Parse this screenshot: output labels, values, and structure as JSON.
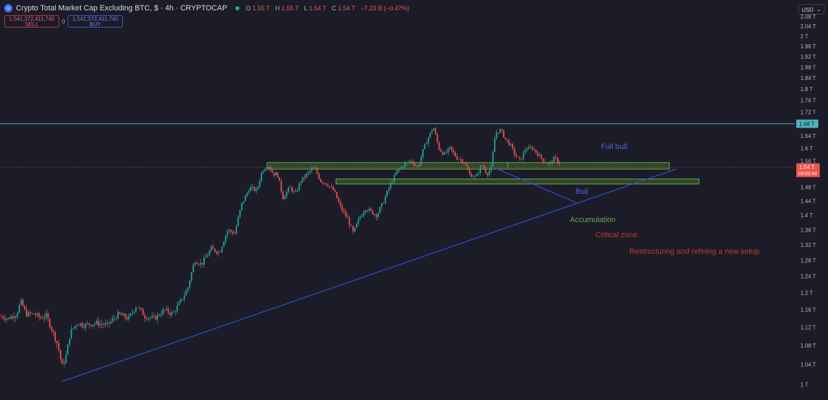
{
  "header": {
    "symbol_icon": "cryptocap-icon",
    "title": "Crypto Total Market Cap Excluding BTC, $ · 4h · CRYPTOCAP",
    "ohlc": {
      "o_label": "O",
      "o_value": "1.55 T",
      "h_label": "H",
      "h_value": "1.55 T",
      "l_label": "L",
      "l_value": "1.54 T",
      "c_label": "C",
      "c_value": "1.54 T",
      "change": "−7.23 B (−0.47%)"
    }
  },
  "trade": {
    "sell_price": "1,541,372,411,740",
    "sell_label": "SELL",
    "spread": "0",
    "buy_price": "1,541,372,411,740",
    "buy_label": "BUY"
  },
  "currency": "USD",
  "colors": {
    "background": "#1c1c28",
    "up": "#26a69a",
    "down": "#ef5350",
    "trendline": "#2e4fd6",
    "resistance": "#4fb3bf",
    "zone_fill": "#3f6a2a",
    "zone_border": "#6aa84f",
    "critical_text": "#c0392b"
  },
  "chart_data": {
    "type": "candlestick",
    "timeframe": "4h",
    "y_scale": "log",
    "ylim": [
      0.98,
      2.12
    ],
    "y_ticks": [
      {
        "v": 1.0,
        "label": "1 T"
      },
      {
        "v": 1.04,
        "label": "1.04 T"
      },
      {
        "v": 1.08,
        "label": "1.08 T"
      },
      {
        "v": 1.12,
        "label": "1.12 T"
      },
      {
        "v": 1.16,
        "label": "1.16 T"
      },
      {
        "v": 1.2,
        "label": "1.2 T"
      },
      {
        "v": 1.24,
        "label": "1.24 T"
      },
      {
        "v": 1.28,
        "label": "1.28 T"
      },
      {
        "v": 1.32,
        "label": "1.32 T"
      },
      {
        "v": 1.36,
        "label": "1.36 T"
      },
      {
        "v": 1.4,
        "label": "1.4 T"
      },
      {
        "v": 1.44,
        "label": "1.44 T"
      },
      {
        "v": 1.48,
        "label": "1.48 T"
      },
      {
        "v": 1.52,
        "label": "1.52 T"
      },
      {
        "v": 1.56,
        "label": "1.56 T"
      },
      {
        "v": 1.6,
        "label": "1.6 T"
      },
      {
        "v": 1.64,
        "label": "1.64 T"
      },
      {
        "v": 1.72,
        "label": "1.72 T"
      },
      {
        "v": 1.76,
        "label": "1.76 T"
      },
      {
        "v": 1.8,
        "label": "1.8 T"
      },
      {
        "v": 1.84,
        "label": "1.84 T"
      },
      {
        "v": 1.88,
        "label": "1.88 T"
      },
      {
        "v": 1.92,
        "label": "1.92 T"
      },
      {
        "v": 1.96,
        "label": "1.96 T"
      },
      {
        "v": 2.0,
        "label": "2 T"
      },
      {
        "v": 2.04,
        "label": "2.04 T"
      },
      {
        "v": 2.08,
        "label": "2.08 T"
      }
    ],
    "price_path": [
      [
        0,
        1.145
      ],
      [
        12,
        1.14
      ],
      [
        24,
        1.15
      ],
      [
        30,
        1.18
      ],
      [
        38,
        1.15
      ],
      [
        50,
        1.15
      ],
      [
        60,
        1.14
      ],
      [
        66,
        1.15
      ],
      [
        74,
        1.12
      ],
      [
        84,
        1.08
      ],
      [
        90,
        1.035
      ],
      [
        96,
        1.06
      ],
      [
        102,
        1.11
      ],
      [
        112,
        1.13
      ],
      [
        122,
        1.125
      ],
      [
        140,
        1.13
      ],
      [
        155,
        1.125
      ],
      [
        172,
        1.15
      ],
      [
        186,
        1.14
      ],
      [
        198,
        1.17
      ],
      [
        210,
        1.145
      ],
      [
        224,
        1.14
      ],
      [
        238,
        1.16
      ],
      [
        250,
        1.15
      ],
      [
        262,
        1.18
      ],
      [
        272,
        1.21
      ],
      [
        282,
        1.28
      ],
      [
        292,
        1.27
      ],
      [
        306,
        1.31
      ],
      [
        318,
        1.3
      ],
      [
        330,
        1.36
      ],
      [
        340,
        1.35
      ],
      [
        350,
        1.43
      ],
      [
        362,
        1.48
      ],
      [
        372,
        1.47
      ],
      [
        380,
        1.53
      ],
      [
        388,
        1.55
      ],
      [
        396,
        1.52
      ],
      [
        402,
        1.52
      ],
      [
        410,
        1.45
      ],
      [
        420,
        1.48
      ],
      [
        428,
        1.46
      ],
      [
        436,
        1.5
      ],
      [
        450,
        1.53
      ],
      [
        456,
        1.54
      ],
      [
        464,
        1.5
      ],
      [
        474,
        1.49
      ],
      [
        484,
        1.47
      ],
      [
        494,
        1.42
      ],
      [
        504,
        1.39
      ],
      [
        512,
        1.35
      ],
      [
        520,
        1.39
      ],
      [
        530,
        1.42
      ],
      [
        538,
        1.41
      ],
      [
        546,
        1.4
      ],
      [
        556,
        1.44
      ],
      [
        566,
        1.49
      ],
      [
        576,
        1.53
      ],
      [
        586,
        1.55
      ],
      [
        596,
        1.56
      ],
      [
        606,
        1.54
      ],
      [
        614,
        1.6
      ],
      [
        622,
        1.64
      ],
      [
        628,
        1.67
      ],
      [
        636,
        1.6
      ],
      [
        644,
        1.58
      ],
      [
        652,
        1.6
      ],
      [
        662,
        1.57
      ],
      [
        672,
        1.56
      ],
      [
        680,
        1.52
      ],
      [
        690,
        1.51
      ],
      [
        698,
        1.55
      ],
      [
        706,
        1.52
      ],
      [
        712,
        1.54
      ],
      [
        718,
        1.65
      ],
      [
        726,
        1.66
      ],
      [
        732,
        1.63
      ],
      [
        740,
        1.61
      ],
      [
        746,
        1.58
      ],
      [
        754,
        1.56
      ],
      [
        762,
        1.6
      ],
      [
        772,
        1.6
      ],
      [
        780,
        1.58
      ],
      [
        788,
        1.56
      ],
      [
        796,
        1.55
      ],
      [
        804,
        1.57
      ],
      [
        812,
        1.55
      ]
    ],
    "last_price": {
      "value": 1.54,
      "label": "1.54 T",
      "countdown": "03:02:44"
    },
    "resistance": {
      "value": 1.68,
      "label": "1.68 T"
    },
    "annotations": {
      "full_bull": "Full bull",
      "bull": "Bull",
      "accumulation": "Accumulation",
      "critical_zone": "Critical zone",
      "restructuring": "Restructuring and refining a new setup"
    },
    "zones": [
      {
        "name": "accumulation-zone",
        "low": 1.535,
        "high": 1.555
      },
      {
        "name": "critical-zone",
        "low": 1.49,
        "high": 1.505
      }
    ]
  }
}
